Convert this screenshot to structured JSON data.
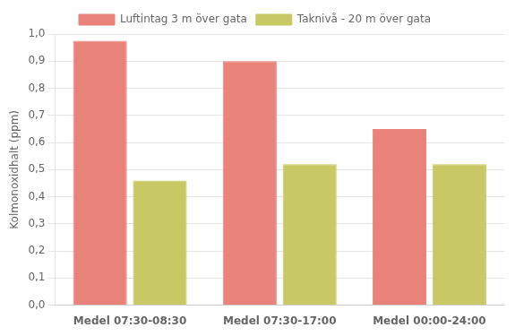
{
  "chart_data": {
    "type": "bar",
    "categories": [
      "Medel 07:30-08:30",
      "Medel 07:30-17:00",
      "Medel 00:00-24:00"
    ],
    "series": [
      {
        "name": "Luftintag 3 m över gata",
        "color": "#E8827A",
        "values": [
          0.975,
          0.9,
          0.65
        ]
      },
      {
        "name": "Taknivå - 20 m över gata",
        "color": "#C8C864",
        "values": [
          0.46,
          0.52,
          0.52
        ]
      }
    ],
    "ylabel": "Kolmonoxidhalt (ppm)",
    "ylim": [
      0,
      1.0
    ],
    "yticks": [
      {
        "value": 0.0,
        "label": "0,0"
      },
      {
        "value": 0.1,
        "label": "0,1"
      },
      {
        "value": 0.2,
        "label": "0,2"
      },
      {
        "value": 0.3,
        "label": "0,3"
      },
      {
        "value": 0.4,
        "label": "0,4"
      },
      {
        "value": 0.5,
        "label": "0,5"
      },
      {
        "value": 0.6,
        "label": "0,6"
      },
      {
        "value": 0.7,
        "label": "0,7"
      },
      {
        "value": 0.8,
        "label": "0,8"
      },
      {
        "value": 0.9,
        "label": "0,9"
      },
      {
        "value": 1.0,
        "label": "1,0"
      }
    ],
    "grid": true,
    "legend": "top"
  }
}
